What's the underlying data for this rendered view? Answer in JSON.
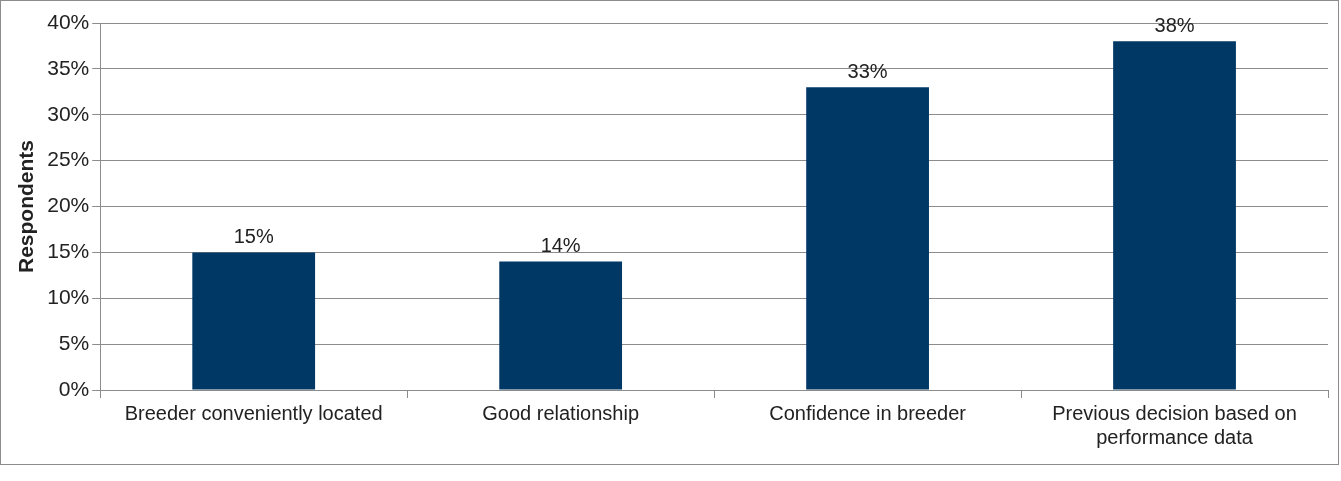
{
  "chart_data": {
    "type": "bar",
    "ylabel": "Respondents",
    "categories": [
      "Breeder conveniently located",
      "Good relationship",
      "Confidence in breeder",
      "Previous decision based on performance data"
    ],
    "values": [
      15,
      14,
      33,
      38
    ],
    "value_labels": [
      "15%",
      "14%",
      "33%",
      "38%"
    ],
    "color": "#003865",
    "ylim": [
      0,
      40
    ],
    "yticks": [
      {
        "value": 0,
        "label": "0%"
      },
      {
        "value": 5,
        "label": "5%"
      },
      {
        "value": 10,
        "label": "10%"
      },
      {
        "value": 15,
        "label": "15%"
      },
      {
        "value": 20,
        "label": "20%"
      },
      {
        "value": 25,
        "label": "25%"
      },
      {
        "value": 30,
        "label": "30%"
      },
      {
        "value": 35,
        "label": "35%"
      },
      {
        "value": 40,
        "label": "40%"
      }
    ],
    "grid": "y",
    "legend": false
  }
}
